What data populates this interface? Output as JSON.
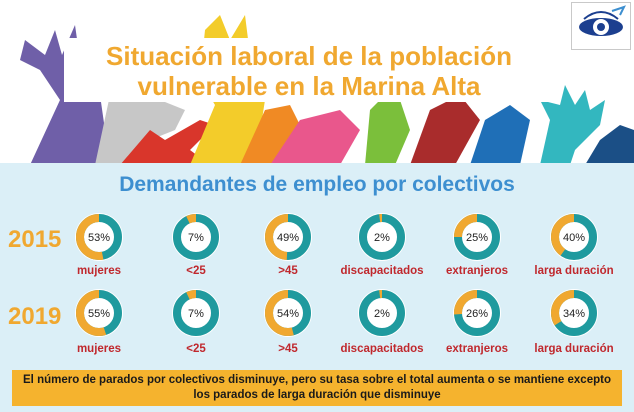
{
  "header": {
    "title_line1": "Situación laboral de la población",
    "title_line2": "vulnerable en la Marina Alta"
  },
  "chart_data": {
    "type": "donut",
    "title": "Demandantes de empleo por colectivos",
    "categories": [
      "mujeres",
      "<25",
      ">45",
      "discapacitados",
      "extranjeros",
      "larga duración"
    ],
    "series": [
      {
        "name": "2015",
        "values": [
          53,
          7,
          49,
          2,
          25,
          40
        ],
        "labels": [
          "53%",
          "7%",
          "49%",
          "2%",
          "25%",
          "40%"
        ]
      },
      {
        "name": "2019",
        "values": [
          55,
          7,
          54,
          2,
          26,
          34
        ],
        "labels": [
          "55%",
          "7%",
          "54%",
          "2%",
          "26%",
          "34%"
        ]
      }
    ],
    "colors": {
      "share": "#f0a830",
      "rest": "#1f9a9e",
      "category_label": "#c0282d",
      "year": "#f0a830"
    }
  },
  "footnote": {
    "line1": "El número de parados por colectivos disminuye,  pero su tasa sobre el total  aumenta o se mantiene excepto",
    "line2": "los parados de larga duración que disminuye"
  },
  "logo": {
    "icon": "eye-icon"
  }
}
